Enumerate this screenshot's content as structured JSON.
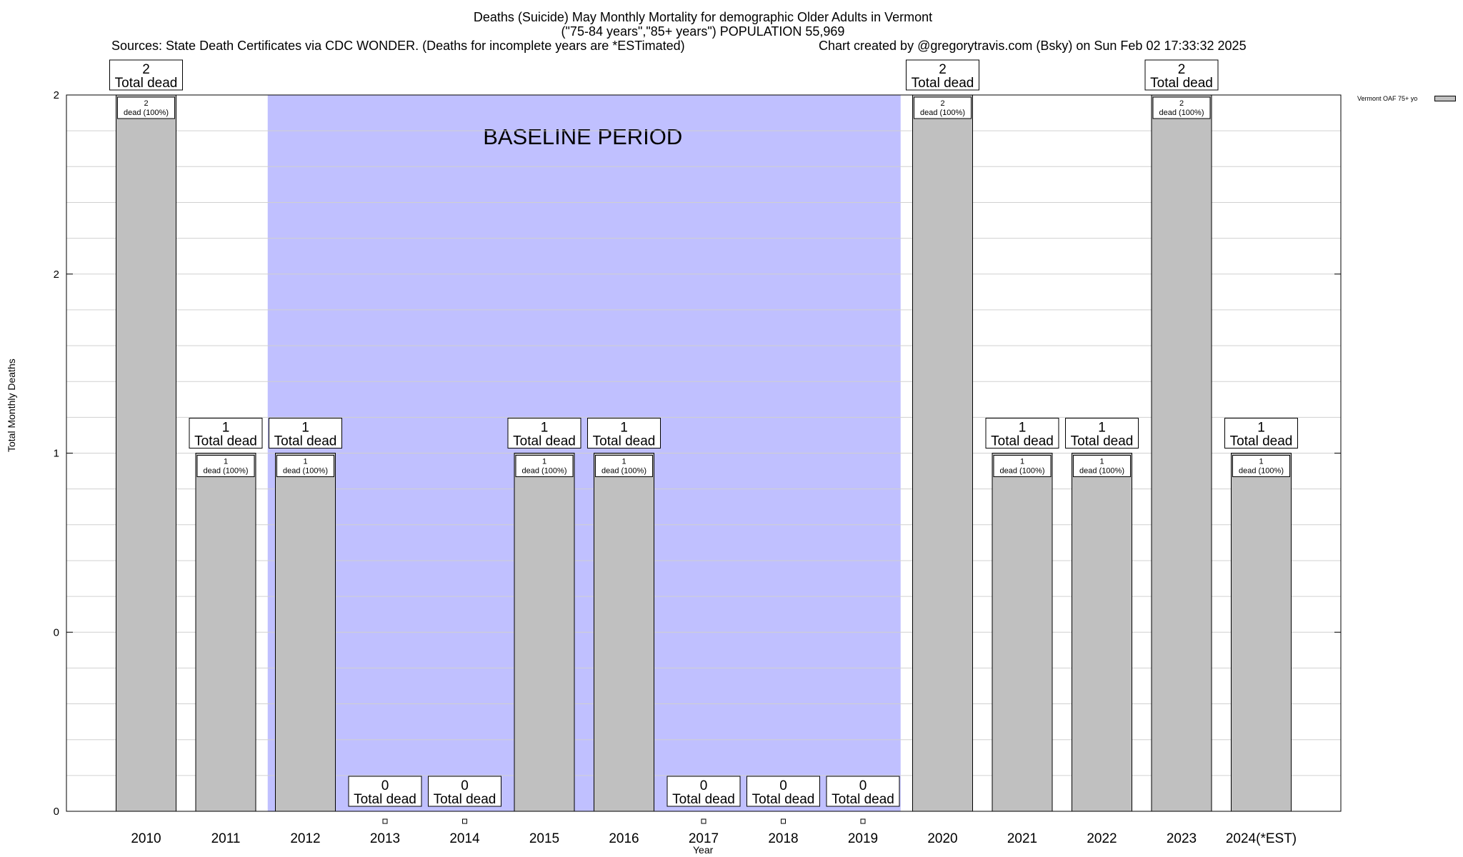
{
  "header": {
    "title_line1": "Deaths (Suicide) May Monthly Mortality for demographic Older Adults in Vermont",
    "title_line2": "(\"75-84 years\",\"85+ years\") POPULATION 55,969",
    "sources": "Sources: State Death Certificates via CDC WONDER. (Deaths for incomplete years are *ESTimated)",
    "credit": "Chart created by @gregorytravis.com (Bsky) on Sun Feb 02 17:33:32 2025"
  },
  "chart_data": {
    "type": "bar",
    "title": "Deaths (Suicide) May Monthly Mortality for demographic Older Adults in Vermont",
    "subtitle": "(\"75-84 years\",\"85+ years\") POPULATION 55,969",
    "xlabel": "Year",
    "ylabel": "Total Monthly Deaths",
    "categories": [
      "2010",
      "2011",
      "2012",
      "2013",
      "2014",
      "2015",
      "2016",
      "2017",
      "2018",
      "2019",
      "2020",
      "2021",
      "2022",
      "2023",
      "2024(*EST)"
    ],
    "series": [
      {
        "name": "Vermont OAF 75+ yo",
        "values": [
          2,
          1,
          1,
          0,
          0,
          1,
          1,
          0,
          0,
          0,
          2,
          1,
          1,
          2,
          1
        ],
        "color": "#c0c0c0"
      }
    ],
    "bar_labels": [
      "2\ndead (100%)",
      "1\ndead (100%)",
      "1\ndead (100%)",
      "",
      "",
      "1\ndead (100%)",
      "1\ndead (100%)",
      "",
      "",
      "",
      "2\ndead (100%)",
      "1\ndead (100%)",
      "1\ndead (100%)",
      "2\ndead (100%)",
      "1\ndead (100%)"
    ],
    "total_labels": [
      "2\nTotal dead",
      "1\nTotal dead",
      "1\nTotal dead",
      "0\nTotal dead",
      "0\nTotal dead",
      "1\nTotal dead",
      "1\nTotal dead",
      "0\nTotal dead",
      "0\nTotal dead",
      "0\nTotal dead",
      "2\nTotal dead",
      "1\nTotal dead",
      "1\nTotal dead",
      "2\nTotal dead",
      "1\nTotal dead"
    ],
    "ylim": [
      0,
      2
    ],
    "y_ticks": [
      {
        "value": 0,
        "label": "0"
      },
      {
        "value": 0.5,
        "label": "0"
      },
      {
        "value": 1,
        "label": "1"
      },
      {
        "value": 1.5,
        "label": "2"
      },
      {
        "value": 2,
        "label": "2"
      }
    ],
    "minor_y_step": 0.1,
    "grid": true,
    "legend_position": "top-right",
    "baseline_period": {
      "label": "BASELINE PERIOD",
      "start": "2012",
      "end": "2019",
      "color": "#c0c0ff"
    }
  }
}
